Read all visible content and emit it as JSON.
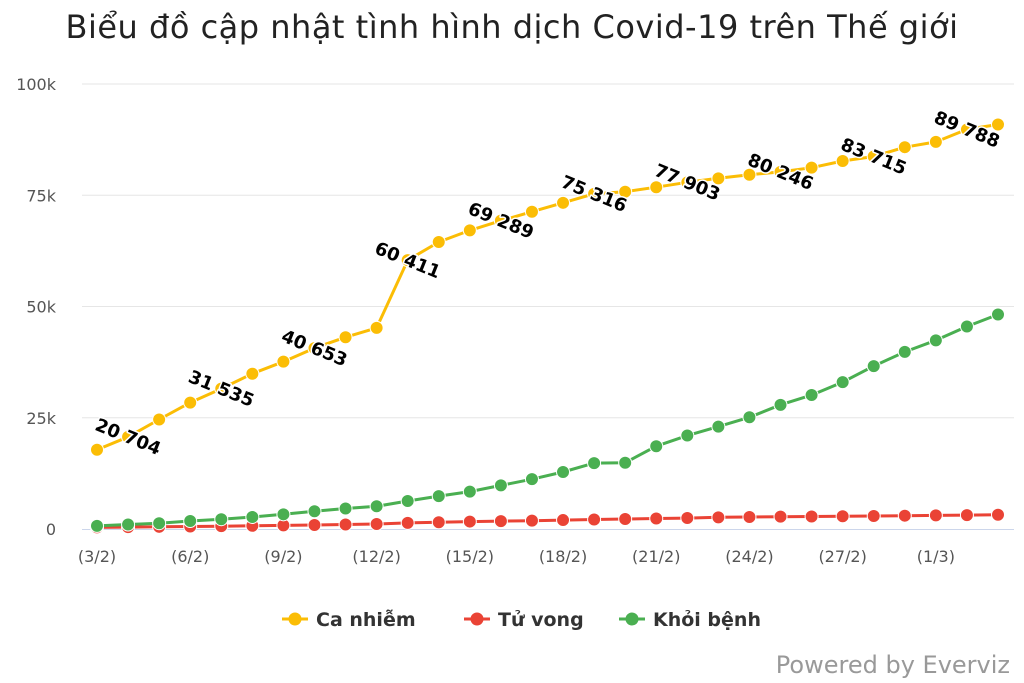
{
  "chart_data": {
    "type": "line",
    "title": "Biểu đồ cập nhật tình hình dịch Covid-19 trên Thế giới",
    "xlabel": "",
    "ylabel": "",
    "ylim": [
      0,
      100000
    ],
    "y_ticks": [
      {
        "value": 0,
        "label": "0"
      },
      {
        "value": 25000,
        "label": "25k"
      },
      {
        "value": 50000,
        "label": "50k"
      },
      {
        "value": 75000,
        "label": "75k"
      },
      {
        "value": 100000,
        "label": "100k"
      }
    ],
    "x": [
      "3/2",
      "4/2",
      "5/2",
      "6/2",
      "7/2",
      "8/2",
      "9/2",
      "10/2",
      "11/2",
      "12/2",
      "13/2",
      "14/2",
      "15/2",
      "16/2",
      "17/2",
      "18/2",
      "19/2",
      "20/2",
      "21/2",
      "22/2",
      "23/2",
      "24/2",
      "25/2",
      "26/2",
      "27/2",
      "28/2",
      "29/2",
      "1/3",
      "2/3",
      "3/3"
    ],
    "x_tick_labels": [
      {
        "index": 0,
        "label": "(3/2)"
      },
      {
        "index": 3,
        "label": "(6/2)"
      },
      {
        "index": 6,
        "label": "(9/2)"
      },
      {
        "index": 9,
        "label": "(12/2)"
      },
      {
        "index": 12,
        "label": "(15/2)"
      },
      {
        "index": 15,
        "label": "(18/2)"
      },
      {
        "index": 18,
        "label": "(21/2)"
      },
      {
        "index": 21,
        "label": "(24/2)"
      },
      {
        "index": 24,
        "label": "(27/2)"
      },
      {
        "index": 27,
        "label": "(1/3)"
      }
    ],
    "series": [
      {
        "name": "Ca nhiễm",
        "color": "#fbbd05",
        "values": [
          17800,
          20704,
          24600,
          28400,
          31535,
          34900,
          37600,
          40653,
          43100,
          45200,
          60411,
          64500,
          67100,
          69289,
          71300,
          73300,
          75316,
          75800,
          76800,
          77903,
          78800,
          79600,
          80246,
          81200,
          82700,
          83715,
          85800,
          87000,
          89788,
          90900
        ],
        "labels": [
          {
            "index": 1,
            "text": "20 704"
          },
          {
            "index": 4,
            "text": "31 535"
          },
          {
            "index": 7,
            "text": "40 653"
          },
          {
            "index": 10,
            "text": "60 411"
          },
          {
            "index": 13,
            "text": "69 289"
          },
          {
            "index": 16,
            "text": "75 316"
          },
          {
            "index": 19,
            "text": "77 903"
          },
          {
            "index": 22,
            "text": "80 246"
          },
          {
            "index": 25,
            "text": "83 715"
          },
          {
            "index": 28,
            "text": "89 788"
          }
        ]
      },
      {
        "name": "Tử vong",
        "color": "#ea4335",
        "values": [
          360,
          430,
          490,
          570,
          640,
          720,
          810,
          910,
          1020,
          1120,
          1370,
          1520,
          1670,
          1780,
          1870,
          2010,
          2130,
          2250,
          2360,
          2460,
          2620,
          2700,
          2770,
          2810,
          2860,
          2920,
          2990,
          3050,
          3120,
          3200
        ]
      },
      {
        "name": "Khỏi bệnh",
        "color": "#4aaf51",
        "values": [
          700,
          1000,
          1300,
          1800,
          2200,
          2700,
          3300,
          4000,
          4600,
          5100,
          6300,
          7400,
          8400,
          9800,
          11200,
          12800,
          14800,
          14900,
          18600,
          21000,
          23000,
          25100,
          27900,
          30100,
          33000,
          36600,
          39800,
          42400,
          45500,
          48200
        ]
      }
    ],
    "legend_position": "bottom-center",
    "grid": true
  },
  "credit": "Powered by Everviz"
}
